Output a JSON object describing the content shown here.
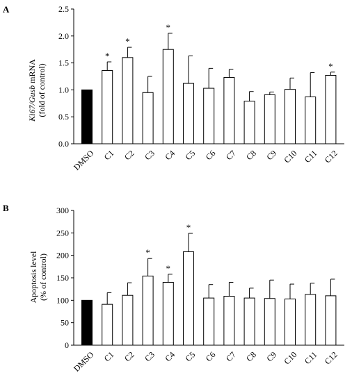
{
  "chart_data": [
    {
      "type": "bar",
      "panel_label": "A",
      "ylabel_italic": "Ki67/Gusb",
      "ylabel_rest": " mRNA",
      "ylabel_line2": "(fold of control)",
      "categories": [
        "DMSO",
        "C1",
        "C2",
        "C3",
        "C4",
        "C5",
        "C6",
        "C7",
        "C8",
        "C9",
        "C10",
        "C11",
        "C12"
      ],
      "values": [
        1.0,
        1.36,
        1.6,
        0.95,
        1.75,
        1.12,
        1.03,
        1.23,
        0.79,
        0.91,
        1.01,
        0.87,
        1.27
      ],
      "errors": [
        0,
        0.16,
        0.19,
        0.3,
        0.3,
        0.51,
        0.37,
        0.15,
        0.18,
        0.05,
        0.21,
        0.45,
        0.06
      ],
      "significant": [
        false,
        true,
        true,
        false,
        true,
        false,
        false,
        false,
        false,
        false,
        false,
        false,
        true
      ],
      "significance_marker": "*",
      "ylim": [
        0,
        2.5
      ],
      "yticks": [
        "0.0",
        "0.5",
        "1.0",
        "1.5",
        "2.0",
        "2.5"
      ],
      "bar_colors": {
        "control": "#000000",
        "treated": "#ffffff"
      }
    },
    {
      "type": "bar",
      "panel_label": "B",
      "ylabel_line1": "Apoptosis level",
      "ylabel_line2": "(% of control)",
      "categories": [
        "DMSO",
        "C1",
        "C2",
        "C3",
        "C4",
        "C5",
        "C6",
        "C7",
        "C8",
        "C9",
        "C10",
        "C11",
        "C12"
      ],
      "values": [
        100,
        91,
        111,
        154,
        140,
        208,
        105,
        109,
        105,
        104,
        103,
        113,
        110
      ],
      "errors": [
        0,
        26,
        28,
        39,
        18,
        41,
        30,
        31,
        22,
        41,
        33,
        25,
        37
      ],
      "significant": [
        false,
        false,
        false,
        true,
        true,
        true,
        false,
        false,
        false,
        false,
        false,
        false,
        false
      ],
      "significance_marker": "*",
      "ylim": [
        0,
        300
      ],
      "yticks": [
        "0",
        "50",
        "100",
        "150",
        "200",
        "250",
        "300"
      ],
      "bar_colors": {
        "control": "#000000",
        "treated": "#ffffff"
      }
    }
  ]
}
